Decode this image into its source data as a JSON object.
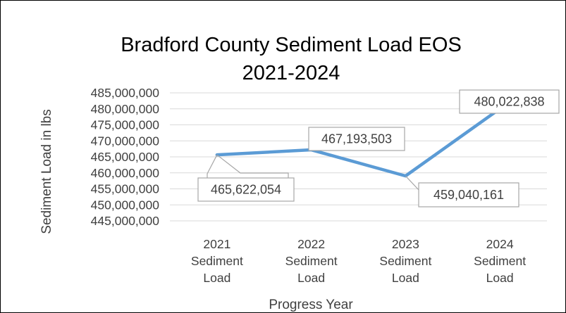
{
  "chart_data": {
    "type": "line",
    "title_lines": [
      "Bradford County Sediment Load EOS",
      "2021-2024"
    ],
    "xlabel": "Progress Year",
    "ylabel": "Sediment Load in lbs",
    "categories": [
      [
        "2021",
        "Sediment",
        "Load"
      ],
      [
        "2022",
        "Sediment",
        "Load"
      ],
      [
        "2023",
        "Sediment",
        "Load"
      ],
      [
        "2024",
        "Sediment",
        "Load"
      ]
    ],
    "values": [
      465622054,
      467193503,
      459040161,
      480022838
    ],
    "data_labels": [
      "465,622,054",
      "467,193,503",
      "459,040,161",
      "480,022,838"
    ],
    "ylim": [
      445000000,
      485000000
    ],
    "y_ticks": [
      "485,000,000",
      "480,000,000",
      "475,000,000",
      "470,000,000",
      "465,000,000",
      "460,000,000",
      "455,000,000",
      "450,000,000",
      "445,000,000"
    ],
    "y_tick_values": [
      485000000,
      480000000,
      475000000,
      470000000,
      465000000,
      460000000,
      455000000,
      450000000,
      445000000
    ],
    "grid": true,
    "legend": "none",
    "colors": {
      "line": "#5B9BD5",
      "grid": "#D9D9D9",
      "text": "#404040",
      "label_border": "#A6A6A6"
    }
  }
}
